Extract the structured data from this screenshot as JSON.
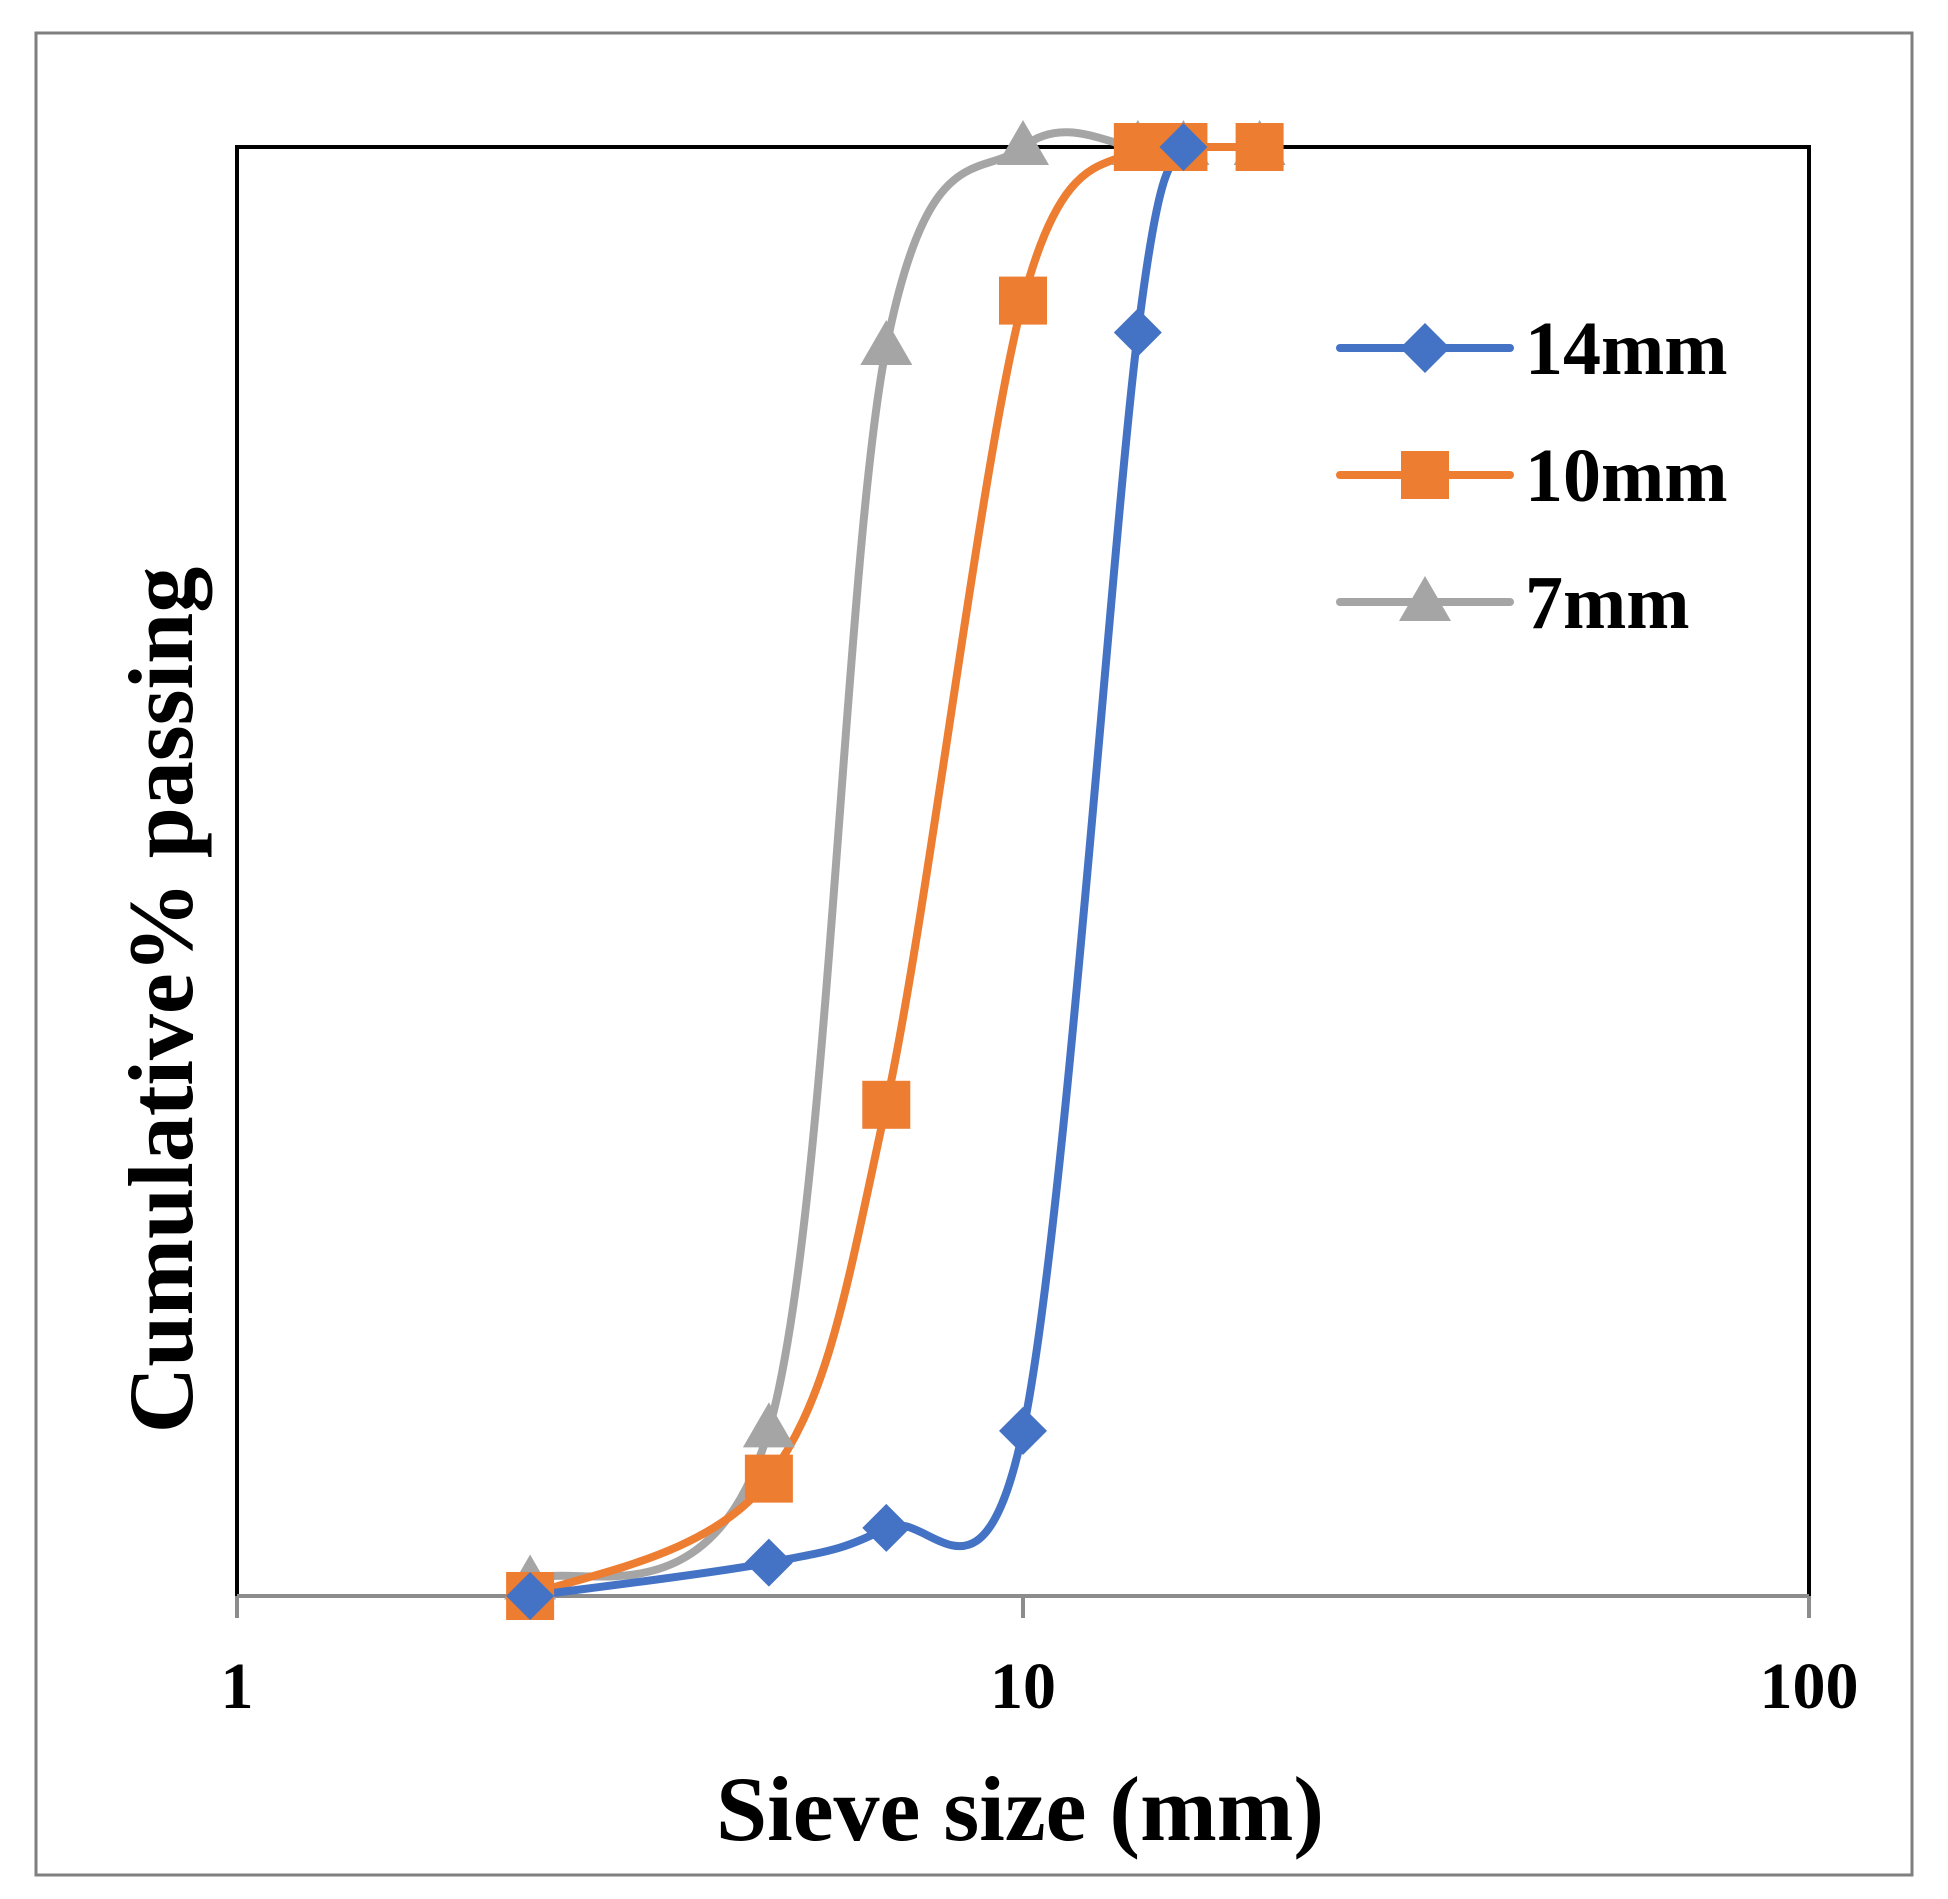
{
  "chart_data": {
    "type": "line",
    "title": "",
    "xlabel": "Sieve size (mm)",
    "ylabel": "Cumulative% passing",
    "x_scale": "log",
    "xlim": [
      1,
      100
    ],
    "ylim": [
      0,
      100
    ],
    "x_tick_labels": [
      "1",
      "10",
      "100"
    ],
    "grid": false,
    "legend_position": "top-right",
    "series": [
      {
        "name": "14mm",
        "color": "#4472C4",
        "marker": "diamond",
        "x": [
          2.36,
          4.75,
          6.7,
          10,
          14,
          16
        ],
        "y": [
          0,
          2.3,
          4.7,
          11.4,
          87.2,
          100
        ]
      },
      {
        "name": "10mm",
        "color": "#ED7D31",
        "marker": "square",
        "x": [
          2.36,
          4.75,
          6.7,
          10,
          14,
          16,
          20
        ],
        "y": [
          0,
          8.1,
          33.9,
          89.4,
          100,
          100,
          100
        ]
      },
      {
        "name": "7mm",
        "color": "#A5A5A5",
        "marker": "triangle",
        "x": [
          2.36,
          4.75,
          6.7,
          10,
          14,
          16,
          20
        ],
        "y": [
          1,
          11.5,
          86.2,
          100,
          100,
          100,
          100
        ]
      }
    ]
  }
}
